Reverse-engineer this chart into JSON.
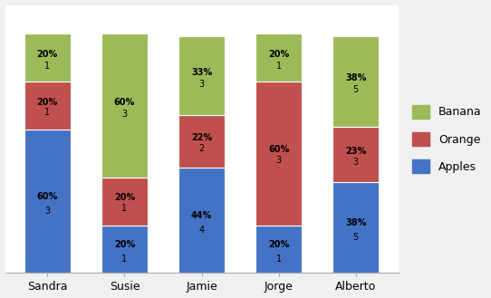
{
  "categories": [
    "Sandra",
    "Susie",
    "Jamie",
    "Jorge",
    "Alberto"
  ],
  "apples_pct": [
    60,
    20,
    44,
    20,
    38
  ],
  "oranges_pct": [
    20,
    20,
    22,
    60,
    23
  ],
  "bananas_pct": [
    20,
    60,
    33,
    20,
    38
  ],
  "apples_val": [
    3,
    1,
    4,
    1,
    5
  ],
  "oranges_val": [
    1,
    1,
    2,
    3,
    3
  ],
  "bananas_val": [
    1,
    3,
    3,
    1,
    5
  ],
  "apples_lbl": [
    "60%",
    "20%",
    "44%",
    "20%",
    "38%"
  ],
  "oranges_lbl": [
    "20%",
    "20%",
    "22%",
    "60%",
    "23%"
  ],
  "bananas_lbl": [
    "20%",
    "60%",
    "33%",
    "20%",
    "38%"
  ],
  "color_apples": "#4472C4",
  "color_oranges": "#C0504D",
  "color_bananas": "#9BBB59",
  "legend_labels": [
    "Banana",
    "Orange",
    "Apples"
  ],
  "bar_width": 0.6,
  "figsize": [
    5.42,
    3.29
  ],
  "dpi": 100,
  "bg_color": "#F0F0F0",
  "plot_bg_color": "#FFFFFF",
  "font_size_pct": 7,
  "font_size_val": 7,
  "font_size_legend": 9,
  "font_size_xlabel": 9
}
